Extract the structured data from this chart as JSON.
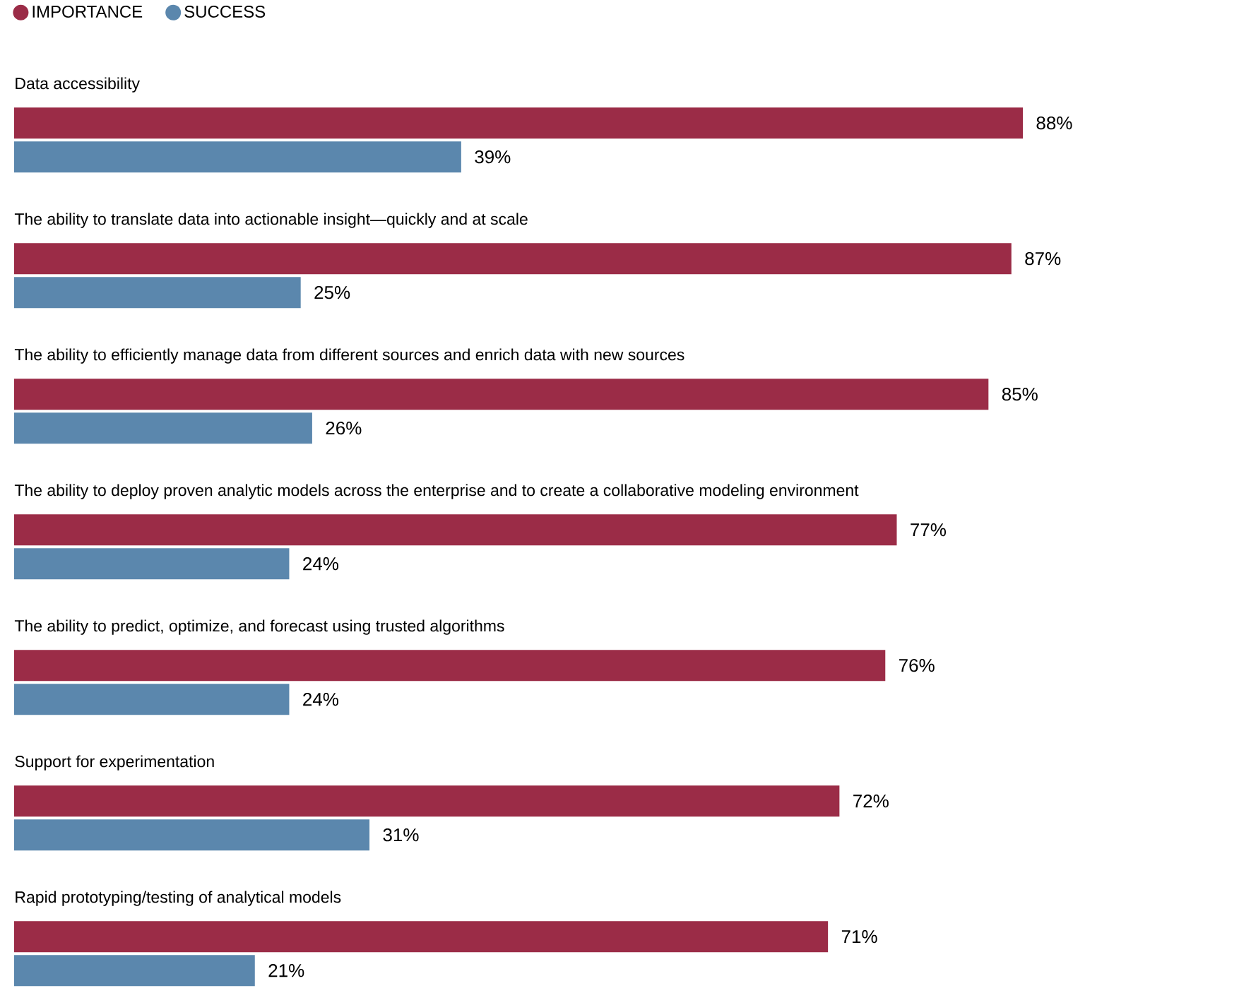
{
  "chart_data": {
    "type": "bar",
    "orientation": "horizontal",
    "legend": "top left",
    "categories": [
      "Data accessibility",
      "The ability to translate data into actionable insight—quickly and at scale",
      "The ability to efficiently manage data from different sources and enrich data with new sources",
      "The ability to deploy proven analytic models across the enterprise and to create a collaborative modeling environment",
      "The ability to predict, optimize, and forecast using trusted algorithms",
      "Support for experimentation",
      "Rapid prototyping/testing of analytical models"
    ],
    "series": [
      {
        "name": "IMPORTANCE",
        "color": "#9b2c47",
        "values": [
          88,
          87,
          85,
          77,
          76,
          72,
          71
        ],
        "value_labels": [
          "88%",
          "87%",
          "85%",
          "77%",
          "76%",
          "72%",
          "71%"
        ]
      },
      {
        "name": "SUCCESS",
        "color": "#5b87ad",
        "values": [
          39,
          25,
          26,
          24,
          24,
          31,
          21
        ],
        "value_labels": [
          "39%",
          "25%",
          "26%",
          "24%",
          "24%",
          "31%",
          "21%"
        ]
      }
    ]
  }
}
